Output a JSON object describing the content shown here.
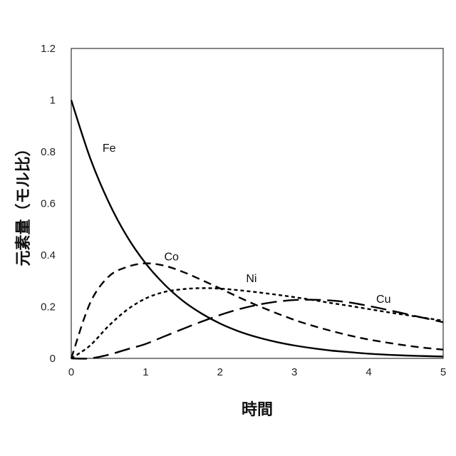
{
  "chart_data": {
    "type": "line",
    "title": "",
    "xlabel": "時間",
    "ylabel": "元素量（モル比）",
    "xlim": [
      0,
      5
    ],
    "ylim": [
      0,
      1.2
    ],
    "x_ticks": [
      "0",
      "1",
      "2",
      "3",
      "4",
      "5"
    ],
    "y_ticks": [
      "0",
      "0.2",
      "0.4",
      "0.6",
      "0.8",
      "1",
      "1.2"
    ],
    "grid": false,
    "legend": "none",
    "x": [
      0,
      0.25,
      0.5,
      0.75,
      1,
      1.25,
      1.5,
      1.75,
      2,
      2.25,
      2.5,
      2.75,
      3,
      3.25,
      3.5,
      3.75,
      4,
      4.25,
      4.5,
      4.75,
      5
    ],
    "series": [
      {
        "name": "Fe",
        "dash": "solid",
        "color": "#000000",
        "values": [
          1.0,
          0.779,
          0.607,
          0.472,
          0.368,
          0.287,
          0.223,
          0.174,
          0.135,
          0.105,
          0.082,
          0.064,
          0.05,
          0.039,
          0.03,
          0.024,
          0.018,
          0.014,
          0.011,
          0.009,
          0.007
        ]
      },
      {
        "name": "Co",
        "dash": "medium",
        "color": "#000000",
        "values": [
          0.0,
          0.212,
          0.316,
          0.354,
          0.368,
          0.359,
          0.335,
          0.304,
          0.271,
          0.237,
          0.205,
          0.176,
          0.149,
          0.126,
          0.106,
          0.088,
          0.073,
          0.061,
          0.05,
          0.041,
          0.034
        ]
      },
      {
        "name": "Ni",
        "dash": "short",
        "color": "#000000",
        "values": [
          0.0,
          0.049,
          0.125,
          0.188,
          0.232,
          0.257,
          0.268,
          0.272,
          0.27,
          0.264,
          0.256,
          0.247,
          0.237,
          0.226,
          0.214,
          0.203,
          0.191,
          0.179,
          0.168,
          0.157,
          0.146
        ]
      },
      {
        "name": "Cu",
        "dash": "long",
        "color": "#000000",
        "values": [
          0.0,
          0.0,
          0.014,
          0.035,
          0.056,
          0.085,
          0.114,
          0.142,
          0.168,
          0.19,
          0.207,
          0.219,
          0.226,
          0.227,
          0.224,
          0.216,
          0.203,
          0.188,
          0.172,
          0.156,
          0.14
        ]
      }
    ],
    "annotations": [
      {
        "text": "Fe",
        "x": 0.42,
        "y": 0.8
      },
      {
        "text": "Co",
        "x": 1.25,
        "y": 0.38
      },
      {
        "text": "Ni",
        "x": 2.35,
        "y": 0.295
      },
      {
        "text": "Cu",
        "x": 4.1,
        "y": 0.215
      }
    ]
  }
}
